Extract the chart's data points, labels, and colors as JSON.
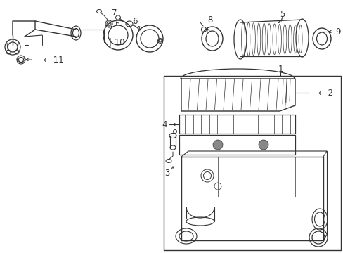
{
  "bg_color": "#ffffff",
  "line_color": "#333333",
  "fig_width": 4.89,
  "fig_height": 3.6,
  "dpi": 100,
  "label_fontsize": 8.5
}
